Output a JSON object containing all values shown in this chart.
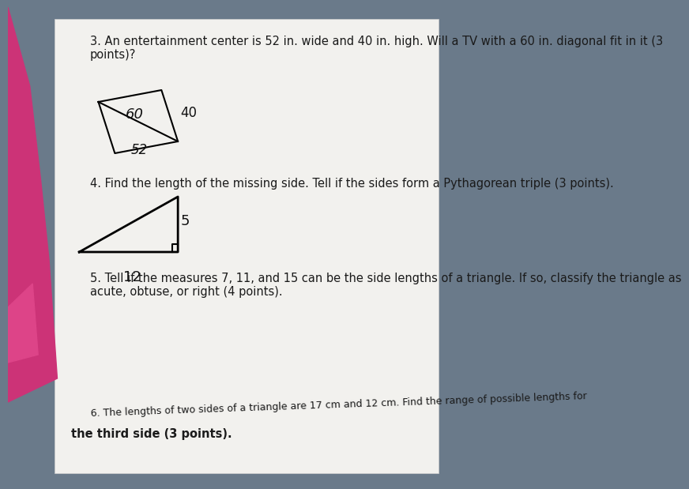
{
  "bg_color": "#e8e8e8",
  "paper_color": "#f0f0ec",
  "q3_text": "3. An entertainment center is 52 in. wide and 40 in. high. Will a TV with a 60 in. diagonal fit in it (3\npoints)?",
  "q4_text": "4. Find the length of the missing side. Tell if the sides form a Pythagorean triple (3 points).",
  "q5_text": "5. Tell if the measures 7, 11, and 15 can be the side lengths of a triangle. If so, classify the triangle as\nacute, obtuse, or right (4 points).",
  "q6_text_line1": "6. The lengths of two sides of a triangle are 17 cm and 12 cm. Find the range of possible lengths for",
  "q6_text_line2": "the third side (3 points).",
  "q6_rotated": "6. The lengths of two sides of a triangle are 17 cm and 12 cm. Find the range of possible lengths for",
  "hand_color": "#d44080",
  "text_color": "#1a1a1a",
  "font_size_main": 11,
  "font_size_small": 9,
  "rect_label_60": "60",
  "rect_label_40": "40",
  "rect_label_52": "52",
  "tri_label_5": "5",
  "tri_label_12": "12"
}
